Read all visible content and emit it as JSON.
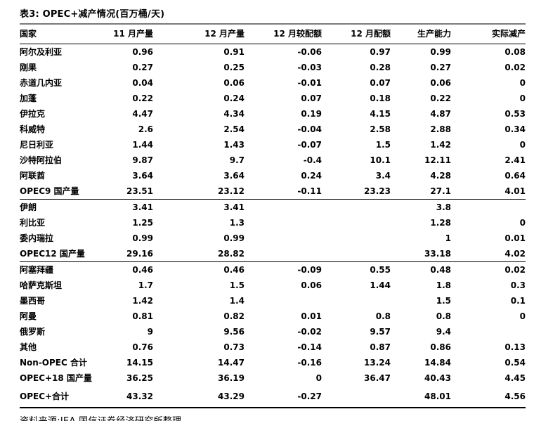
{
  "title": "表3: OPEC+减产情况(百万桶/天)",
  "table": {
    "headers": [
      "国家",
      "11 月产量",
      "12 月产量",
      "12 月较配额",
      "12 月配额",
      "生产能力",
      "实际减产"
    ],
    "rows": [
      {
        "country": "阿尔及利亚",
        "values": [
          "0.96",
          "0.91",
          "-0.06",
          "0.97",
          "0.99",
          "0.08"
        ]
      },
      {
        "country": "刚果",
        "values": [
          "0.27",
          "0.25",
          "-0.03",
          "0.28",
          "0.27",
          "0.02"
        ]
      },
      {
        "country": "赤道几内亚",
        "values": [
          "0.04",
          "0.06",
          "-0.01",
          "0.07",
          "0.06",
          "0"
        ]
      },
      {
        "country": "加蓬",
        "values": [
          "0.22",
          "0.24",
          "0.07",
          "0.18",
          "0.22",
          "0"
        ]
      },
      {
        "country": "伊拉克",
        "values": [
          "4.47",
          "4.34",
          "0.19",
          "4.15",
          "4.87",
          "0.53"
        ]
      },
      {
        "country": "科威特",
        "values": [
          "2.6",
          "2.54",
          "-0.04",
          "2.58",
          "2.88",
          "0.34"
        ]
      },
      {
        "country": "尼日利亚",
        "values": [
          "1.44",
          "1.43",
          "-0.07",
          "1.5",
          "1.42",
          "0"
        ]
      },
      {
        "country": "沙特阿拉伯",
        "values": [
          "9.87",
          "9.7",
          "-0.4",
          "10.1",
          "12.11",
          "2.41"
        ]
      },
      {
        "country": "阿联酋",
        "values": [
          "3.64",
          "3.64",
          "0.24",
          "3.4",
          "4.28",
          "0.64"
        ]
      },
      {
        "country": "OPEC9 国产量",
        "values": [
          "23.51",
          "23.12",
          "-0.11",
          "23.23",
          "27.1",
          "4.01"
        ]
      },
      {
        "country": "伊朗",
        "values": [
          "3.41",
          "3.41",
          "",
          "",
          "3.8",
          ""
        ]
      },
      {
        "country": "利比亚",
        "values": [
          "1.25",
          "1.3",
          "",
          "",
          "1.28",
          "0"
        ]
      },
      {
        "country": "委内瑞拉",
        "values": [
          "0.99",
          "0.99",
          "",
          "",
          "1",
          "0.01"
        ]
      },
      {
        "country": "OPEC12 国产量",
        "values": [
          "29.16",
          "28.82",
          "",
          "",
          "33.18",
          "4.02"
        ]
      },
      {
        "country": "阿塞拜疆",
        "values": [
          "0.46",
          "0.46",
          "-0.09",
          "0.55",
          "0.48",
          "0.02"
        ]
      },
      {
        "country": "哈萨克斯坦",
        "values": [
          "1.7",
          "1.5",
          "0.06",
          "1.44",
          "1.8",
          "0.3"
        ]
      },
      {
        "country": "墨西哥",
        "values": [
          "1.42",
          "1.4",
          "",
          "",
          "1.5",
          "0.1"
        ]
      },
      {
        "country": "阿曼",
        "values": [
          "0.81",
          "0.82",
          "0.01",
          "0.8",
          "0.8",
          "0"
        ]
      },
      {
        "country": "俄罗斯",
        "values": [
          "9",
          "9.56",
          "-0.02",
          "9.57",
          "9.4",
          ""
        ]
      },
      {
        "country": "其他",
        "values": [
          "0.76",
          "0.73",
          "-0.14",
          "0.87",
          "0.86",
          "0.13"
        ]
      },
      {
        "country": "Non-OPEC 合计",
        "values": [
          "14.15",
          "14.47",
          "-0.16",
          "13.24",
          "14.84",
          "0.54"
        ]
      },
      {
        "country": "OPEC+18 国产量",
        "values": [
          "36.25",
          "36.19",
          "0",
          "36.47",
          "40.43",
          "4.45"
        ]
      },
      {
        "country": "OPEC+合计",
        "values": [
          "43.32",
          "43.29",
          "-0.27",
          "",
          "48.01",
          "4.56"
        ]
      }
    ],
    "section_lines_after_row_indexes": [
      9,
      13
    ]
  },
  "source_note": "资料来源:IEA,国信证券经济研究所整理",
  "colors": {
    "text": "#000000",
    "title_rule": "#7a7a7a",
    "table_rule": "#000000",
    "background": "#ffffff"
  }
}
